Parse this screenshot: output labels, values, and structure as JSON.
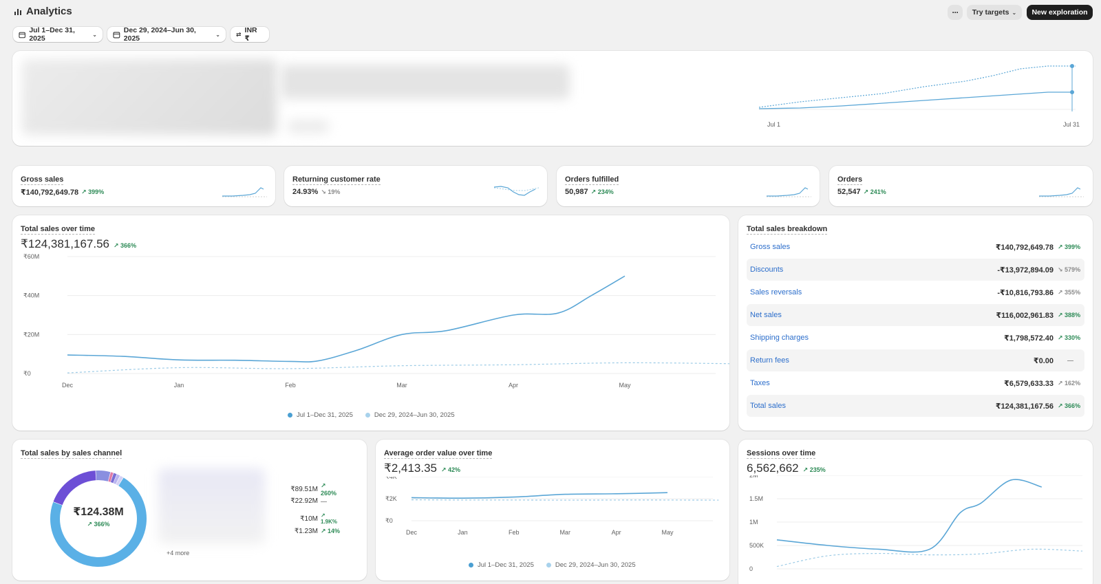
{
  "header": {
    "title": "Analytics",
    "more_label": "···",
    "try_targets_label": "Try targets",
    "new_exploration_label": "New exploration"
  },
  "filters": {
    "date_range": "Jul 1–Dec 31, 2025",
    "compare_range": "Dec 29, 2024–Jun 30, 2025",
    "currency": "INR ₹"
  },
  "hero_chart": {
    "x_start": "Jul 1",
    "x_end": "Jul 31"
  },
  "kpis": [
    {
      "title": "Gross sales",
      "value": "₹140,792,649.78",
      "delta": "399%",
      "direction": "up"
    },
    {
      "title": "Returning customer rate",
      "value": "24.93%",
      "delta": "19%",
      "direction": "down"
    },
    {
      "title": "Orders fulfilled",
      "value": "50,987",
      "delta": "234%",
      "direction": "up"
    },
    {
      "title": "Orders",
      "value": "52,547",
      "delta": "241%",
      "direction": "up"
    }
  ],
  "total_sales": {
    "title": "Total sales over time",
    "value": "₹124,381,167.56",
    "delta": "366%",
    "legend": [
      "Jul 1–Dec 31, 2025",
      "Dec 29, 2024–Jun 30, 2025"
    ]
  },
  "breakdown": {
    "title": "Total sales breakdown",
    "rows": [
      {
        "label": "Gross sales",
        "value": "₹140,792,649.78",
        "delta": "399%",
        "tone": "up"
      },
      {
        "label": "Discounts",
        "value": "-₹13,972,894.09",
        "delta": "579%",
        "tone": "gray-down"
      },
      {
        "label": "Sales reversals",
        "value": "-₹10,816,793.86",
        "delta": "355%",
        "tone": "gray-up"
      },
      {
        "label": "Net sales",
        "value": "₹116,002,961.83",
        "delta": "388%",
        "tone": "up"
      },
      {
        "label": "Shipping charges",
        "value": "₹1,798,572.40",
        "delta": "330%",
        "tone": "up"
      },
      {
        "label": "Return fees",
        "value": "₹0.00",
        "delta": "—",
        "tone": "none"
      },
      {
        "label": "Taxes",
        "value": "₹6,579,633.33",
        "delta": "162%",
        "tone": "gray-up"
      },
      {
        "label": "Total sales",
        "value": "₹124,381,167.56",
        "delta": "366%",
        "tone": "up"
      }
    ]
  },
  "channels": {
    "title": "Total sales by sales channel",
    "center_value": "₹124.38M",
    "center_delta": "366%",
    "values": [
      {
        "value": "₹89.51M",
        "delta": "260%"
      },
      {
        "value": "₹22.92M",
        "delta": "—"
      },
      {
        "value": "₹10M",
        "delta": "1.9K%"
      },
      {
        "value": "₹1.23M",
        "delta": "14%"
      }
    ],
    "more": "+4 more"
  },
  "aov": {
    "title": "Average order value over time",
    "value": "₹2,413.35",
    "delta": "42%",
    "legend": [
      "Jul 1–Dec 31, 2025",
      "Dec 29, 2024–Jun 30, 2025"
    ]
  },
  "sessions": {
    "title": "Sessions over time",
    "value": "6,562,662",
    "delta": "235%"
  },
  "chart_data": [
    {
      "type": "line",
      "title": "Total sales over time",
      "x": [
        "Dec",
        "Jan",
        "Feb",
        "Mar",
        "Apr",
        "May"
      ],
      "yticks": [
        "₹0",
        "₹20M",
        "₹40M",
        "₹60M"
      ],
      "ylim": [
        0,
        60000000
      ],
      "grid": true,
      "legend_position": "bottom",
      "series": [
        {
          "name": "Jul 1–Dec 31, 2025",
          "points": [
            [
              0,
              9.5
            ],
            [
              0.5,
              8.8
            ],
            [
              1,
              7
            ],
            [
              1.5,
              6.8
            ],
            [
              2,
              6.2
            ],
            [
              2.25,
              6.5
            ],
            [
              2.6,
              12
            ],
            [
              3,
              20
            ],
            [
              3.4,
              22
            ],
            [
              4,
              30
            ],
            [
              4.4,
              31
            ],
            [
              4.7,
              40
            ],
            [
              5,
              50
            ]
          ]
        },
        {
          "name": "Dec 29, 2024–Jun 30, 2025",
          "points": [
            [
              0,
              0.3
            ],
            [
              1,
              3
            ],
            [
              2,
              2.5
            ],
            [
              3,
              4
            ],
            [
              4,
              4.5
            ],
            [
              5,
              5.5
            ],
            [
              6,
              5
            ]
          ]
        }
      ]
    },
    {
      "type": "line",
      "title": "Average order value over time",
      "x": [
        "Dec",
        "Jan",
        "Feb",
        "Mar",
        "Apr",
        "May"
      ],
      "yticks": [
        "₹0",
        "₹2K",
        "₹4K"
      ],
      "ylim": [
        0,
        4000
      ],
      "grid": true,
      "legend_position": "bottom",
      "series": [
        {
          "name": "Jul 1–Dec 31, 2025",
          "points": [
            [
              0,
              2100
            ],
            [
              1,
              2050
            ],
            [
              2,
              2150
            ],
            [
              3,
              2400
            ],
            [
              4,
              2450
            ],
            [
              5,
              2550
            ]
          ]
        },
        {
          "name": "Dec 29, 2024–Jun 30, 2025",
          "points": [
            [
              0,
              1900
            ],
            [
              1,
              1880
            ],
            [
              2,
              1880
            ],
            [
              3,
              1870
            ],
            [
              4,
              1880
            ],
            [
              5,
              1880
            ],
            [
              6,
              1870
            ]
          ]
        }
      ]
    },
    {
      "type": "line",
      "title": "Sessions over time",
      "yticks": [
        "0",
        "500K",
        "1M",
        "1.5M",
        "2M"
      ],
      "ylim": [
        0,
        2000000
      ],
      "grid": true,
      "series": [
        {
          "name": "Jul 1–Dec 31, 2025",
          "points": [
            [
              0,
              620000
            ],
            [
              1,
              500000
            ],
            [
              2,
              420000
            ],
            [
              3,
              420000
            ],
            [
              3.6,
              1200000
            ],
            [
              4,
              1400000
            ],
            [
              4.6,
              1900000
            ],
            [
              5.2,
              1750000
            ]
          ]
        },
        {
          "name": "Dec 29, 2024–Jun 30, 2025",
          "points": [
            [
              0,
              50000
            ],
            [
              1,
              280000
            ],
            [
              2,
              330000
            ],
            [
              3,
              300000
            ],
            [
              4,
              320000
            ],
            [
              5,
              420000
            ],
            [
              6,
              380000
            ]
          ]
        }
      ]
    }
  ],
  "colors": {
    "primary_line": "#5aa6d6",
    "compare_line": "#9ccbe6",
    "positive": "#2e8b57",
    "link": "#2c6ecb",
    "donut": [
      "#5ab0e6",
      "#6d4fd6",
      "#8a8fe0",
      "#e07aa6",
      "#7a6ed6",
      "#b9b4f0",
      "#d3d0f5"
    ]
  }
}
